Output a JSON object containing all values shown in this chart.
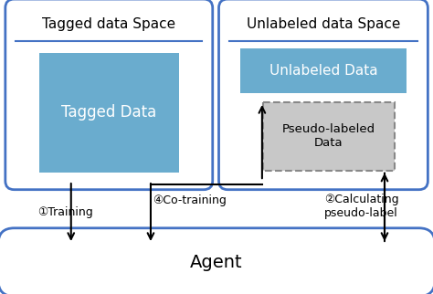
{
  "bg_color": "#ffffff",
  "border_color": "#4472c4",
  "teal_fill": "#6aacce",
  "gray_fill": "#c8c8c8",
  "title_tagged": "Tagged data Space",
  "title_unlabeled": "Unlabeled data Space",
  "label_tagged_data": "Tagged Data",
  "label_unlabeled_data": "Unlabeled Data",
  "label_pseudo": "Pseudo-labeled\nData",
  "label_agent": "Agent",
  "arrow1": "①Training",
  "arrow2": "②Calculating\npseudo-label",
  "arrow3": "④Co-training",
  "figsize": [
    4.74,
    3.22
  ],
  "dpi": 100
}
